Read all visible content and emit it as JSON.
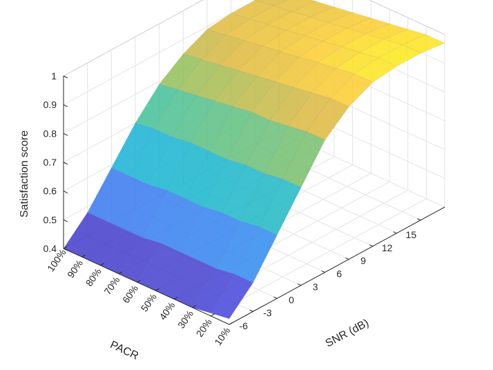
{
  "chart_data": {
    "type": "surface",
    "xlabel": "SNR (dB)",
    "ylabel": "PACR",
    "zlabel": "Satisfaction score",
    "x_ticks": [
      "-6",
      "-3",
      "0",
      "3",
      "6",
      "9",
      "12",
      "15"
    ],
    "y_ticks": [
      "10%",
      "20%",
      "30%",
      "40%",
      "50%",
      "60%",
      "70%",
      "80%",
      "90%",
      "100%"
    ],
    "z_ticks": [
      "0.4",
      "0.5",
      "0.6",
      "0.7",
      "0.8",
      "0.9",
      "1"
    ],
    "zlim": [
      0.4,
      1.0
    ],
    "grid": true,
    "colormap": "parula",
    "x": [
      -9,
      -6,
      -3,
      0,
      3,
      6,
      9,
      12,
      15,
      18
    ],
    "y": [
      10,
      20,
      30,
      40,
      50,
      60,
      70,
      80,
      90,
      100
    ],
    "z": [
      [
        0.42,
        0.5,
        0.62,
        0.74,
        0.86,
        0.93,
        0.97,
        0.98,
        0.98,
        0.97
      ],
      [
        0.41,
        0.5,
        0.62,
        0.74,
        0.86,
        0.93,
        0.97,
        0.98,
        0.98,
        0.97
      ],
      [
        0.4,
        0.49,
        0.61,
        0.73,
        0.85,
        0.92,
        0.96,
        0.97,
        0.97,
        0.96
      ],
      [
        0.4,
        0.49,
        0.61,
        0.73,
        0.84,
        0.91,
        0.95,
        0.96,
        0.96,
        0.95
      ],
      [
        0.4,
        0.49,
        0.6,
        0.72,
        0.84,
        0.9,
        0.94,
        0.95,
        0.95,
        0.94
      ],
      [
        0.4,
        0.49,
        0.6,
        0.72,
        0.83,
        0.89,
        0.93,
        0.94,
        0.94,
        0.93
      ],
      [
        0.4,
        0.48,
        0.6,
        0.72,
        0.82,
        0.88,
        0.92,
        0.93,
        0.93,
        0.92
      ],
      [
        0.4,
        0.48,
        0.59,
        0.71,
        0.81,
        0.87,
        0.91,
        0.92,
        0.92,
        0.91
      ],
      [
        0.4,
        0.48,
        0.59,
        0.71,
        0.8,
        0.86,
        0.9,
        0.91,
        0.91,
        0.9
      ],
      [
        0.4,
        0.48,
        0.59,
        0.7,
        0.79,
        0.85,
        0.89,
        0.9,
        0.9,
        0.89
      ]
    ]
  }
}
